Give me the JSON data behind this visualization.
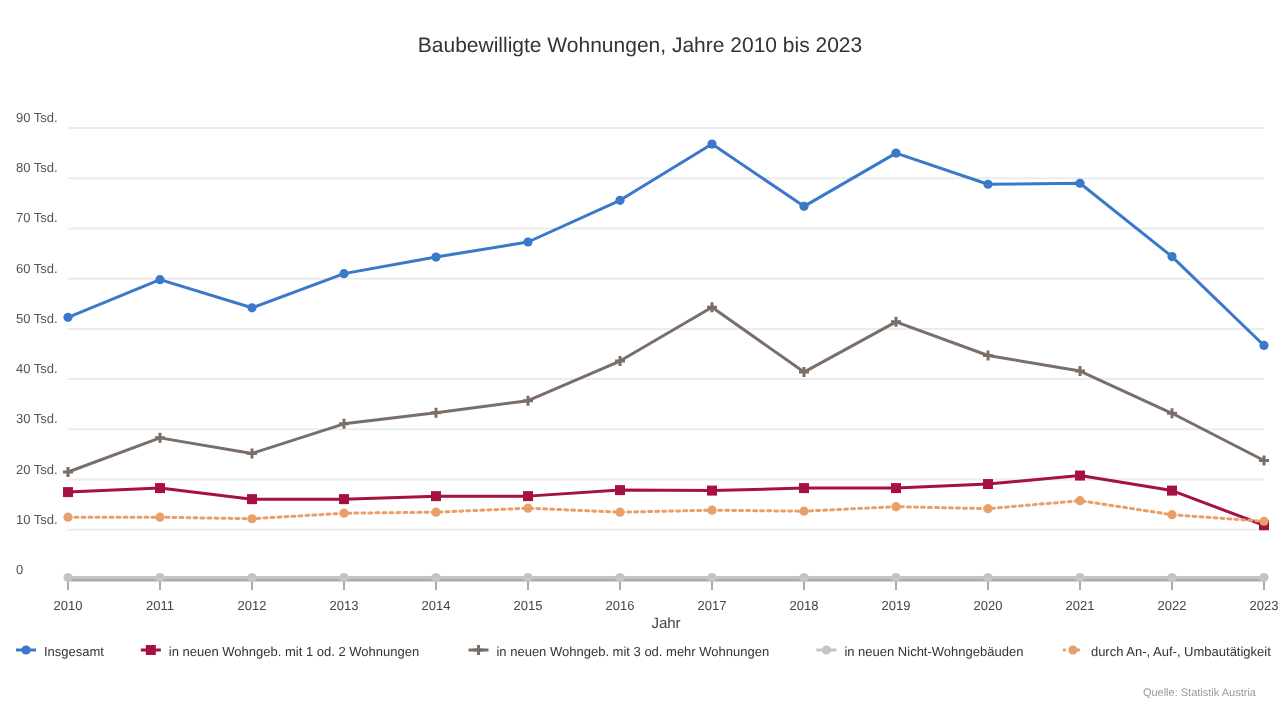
{
  "chart_data": {
    "type": "line",
    "title": "Baubewilligte Wohnungen, Jahre 2010 bis 2023",
    "xlabel": "Jahr",
    "x": [
      2010,
      2011,
      2012,
      2013,
      2014,
      2015,
      2016,
      2017,
      2018,
      2019,
      2020,
      2021,
      2022,
      2023
    ],
    "xlim": [
      2010,
      2023
    ],
    "xticks": [
      2010,
      2011,
      2012,
      2013,
      2014,
      2015,
      2016,
      2017,
      2018,
      2019,
      2020,
      2021,
      2022,
      2023
    ],
    "ylim": [
      0,
      90
    ],
    "yticks": [
      0,
      {
        "value": 10,
        "label": "10 Tsd."
      },
      {
        "value": 20,
        "label": "20 Tsd."
      },
      {
        "value": 30,
        "label": "30 Tsd."
      },
      {
        "value": 40,
        "label": "40 Tsd."
      },
      {
        "value": 50,
        "label": "50 Tsd."
      },
      {
        "value": 60,
        "label": "60 Tsd."
      },
      {
        "value": 70,
        "label": "70 Tsd."
      },
      {
        "value": 80,
        "label": "80 Tsd."
      },
      {
        "value": 90,
        "label": "90 Tsd."
      }
    ],
    "grid": "y",
    "legend": "bottom",
    "marker": "circle",
    "line_style": "solid",
    "series": [
      {
        "name": "Insgesamt",
        "color": "#3a78c9",
        "values": [
          52.3,
          59.8,
          54.2,
          61,
          64.3,
          67.3,
          75.6,
          86.8,
          74.4,
          85,
          78.8,
          79,
          64.4,
          46.7
        ]
      },
      {
        "name": "in neuen Wohngeb. mit 1 od. 2 Wohnungen",
        "color": "#a5123f",
        "marker": "square",
        "values": [
          17.5,
          18.3,
          16.1,
          16.1,
          16.7,
          16.7,
          17.9,
          17.8,
          18.3,
          18.3,
          19.1,
          20.8,
          17.8,
          10.9
        ]
      },
      {
        "name": "in neuen Wohngeb. mit 3 od. mehr Wohnungen",
        "color": "#7a6e68",
        "marker": "cross",
        "values": [
          21.5,
          28.3,
          25.2,
          31.1,
          33.3,
          35.7,
          43.6,
          54.3,
          41.4,
          51.4,
          44.7,
          41.6,
          33.2,
          23.8
        ]
      },
      {
        "name": "in neuen Nicht-Wohngebäuden",
        "color": "#c4c4c4",
        "values": [
          0.5,
          0.5,
          0.5,
          0.5,
          0.5,
          0.5,
          0.5,
          0.5,
          0.5,
          0.5,
          0.5,
          0.5,
          0.5,
          0.5
        ]
      },
      {
        "name": "durch An-, Auf-, Umbautätigkeit",
        "color": "#e8a06a",
        "line_style": "dotted",
        "values": [
          12.5,
          12.5,
          12.2,
          13.3,
          13.5,
          14.3,
          13.5,
          13.9,
          13.7,
          14.6,
          14.2,
          15.8,
          13,
          11.7
        ]
      }
    ],
    "annotations": [
      "Quelle: Statistik Austria"
    ]
  }
}
